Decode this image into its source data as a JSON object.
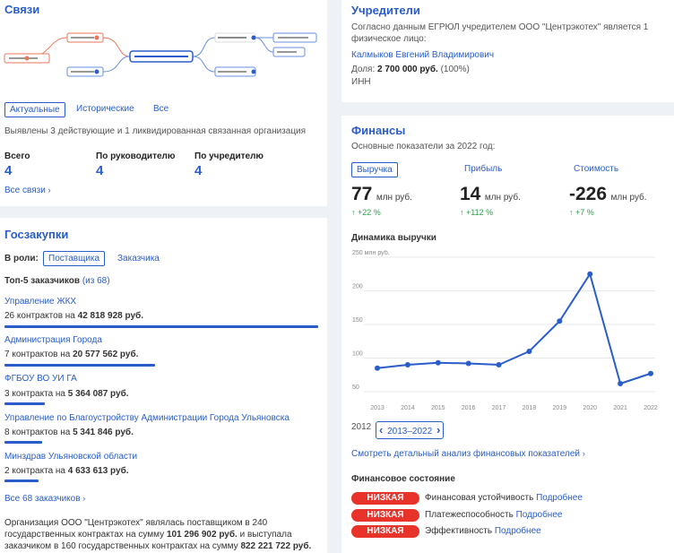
{
  "links": {
    "title": "Связи",
    "tabs": [
      "Актуальные",
      "Исторические",
      "Все"
    ],
    "description": "Выявлены 3 действующие и 1 ликвидированная связанная организация",
    "stats": [
      {
        "label": "Всего",
        "value": "4"
      },
      {
        "label": "По руководителю",
        "value": "4"
      },
      {
        "label": "По учредителю",
        "value": "4"
      }
    ],
    "all_link": "Все связи",
    "colors": {
      "accent": "#2a5dc9",
      "liquidated": "#e8765a"
    }
  },
  "procurement": {
    "title": "Госзакупки",
    "role_label": "В роли:",
    "roles": [
      "Поставщика",
      "Заказчика"
    ],
    "top_label": "Топ-5 заказчиков",
    "top_of": "(из 68)",
    "customers": [
      {
        "name": "Управление ЖКХ",
        "text": "26 контрактов на",
        "sum": "42 818 928 руб.",
        "share": 1.0
      },
      {
        "name": "Администрация Города",
        "text": "7 контрактов на",
        "sum": "20 577 562 руб.",
        "share": 0.48
      },
      {
        "name": "ФГБОУ ВО УИ ГА",
        "text": "3 контракта на",
        "sum": "5 364 087 руб.",
        "share": 0.13
      },
      {
        "name": "Управление по Благоустройству Администрации Города Ульяновска",
        "text": "8 контрактов на",
        "sum": "5 341 846 руб.",
        "share": 0.12
      },
      {
        "name": "Минздрав Ульяновской области",
        "text": "2 контракта на",
        "sum": "4 633 613 руб.",
        "share": 0.11
      }
    ],
    "all_link": "Все 68 заказчиков",
    "summary_line1": "Организация ООО \"Центрэкотех\" являлась поставщиком в 240",
    "summary_line2a": "государственных контрактах на сумму",
    "summary_sum1": "101 296 902 руб.",
    "summary_line2b": "и выступала",
    "summary_line3a": "заказчиком в 160 государственных контрактах на сумму",
    "summary_sum2": "822 221 722 руб."
  },
  "founders": {
    "title": "Учредители",
    "text_line1": "Согласно данным ЕГРЮЛ учредителем ООО \"Центрэкотех\" является 1",
    "text_line2": "физическое лицо:",
    "name": "Калмыков Евгений Владимирович",
    "share_label": "Доля:",
    "share_value": "2 700 000 руб.",
    "share_pct": "(100%)",
    "inn_label": "ИНН"
  },
  "finance": {
    "title": "Финансы",
    "subtitle": "Основные показатели за 2022 год:",
    "tabs": [
      "Выручка",
      "Прибыль",
      "Стоимость"
    ],
    "metrics": [
      {
        "value": "77",
        "unit": "млн руб.",
        "delta": "↑ +22 %"
      },
      {
        "value": "14",
        "unit": "млн руб.",
        "delta": "↑ +112 %"
      },
      {
        "value": "-226",
        "unit": "млн руб.",
        "delta": "↑ +7 %"
      }
    ],
    "chart_title": "Динамика выручки",
    "range_start": "2012",
    "range_label": "2013–2022",
    "detail_link": "Смотреть детальный анализ финансовых показателей",
    "state_title": "Финансовое состояние",
    "state_items": [
      {
        "badge": "НИЗКАЯ",
        "label": "Финансовая устойчивость",
        "more": "Подробнее"
      },
      {
        "badge": "НИЗКАЯ",
        "label": "Платежеспособность",
        "more": "Подробнее"
      },
      {
        "badge": "НИЗКАЯ",
        "label": "Эффективность",
        "more": "Подробнее"
      }
    ]
  },
  "chart_data": {
    "type": "line",
    "title": "Динамика выручки",
    "ylabel": "250 млн руб.",
    "x": [
      "2013",
      "2014",
      "2015",
      "2016",
      "2017",
      "2018",
      "2019",
      "2020",
      "2021",
      "2022"
    ],
    "series": [
      {
        "values": [
          85,
          90,
          93,
          92,
          90,
          110,
          155,
          225,
          62,
          77
        ]
      }
    ],
    "ylim": [
      50,
      250
    ],
    "yticks": [
      250,
      200,
      150,
      100,
      50
    ],
    "grid": true,
    "color": "#2a5dc9"
  }
}
